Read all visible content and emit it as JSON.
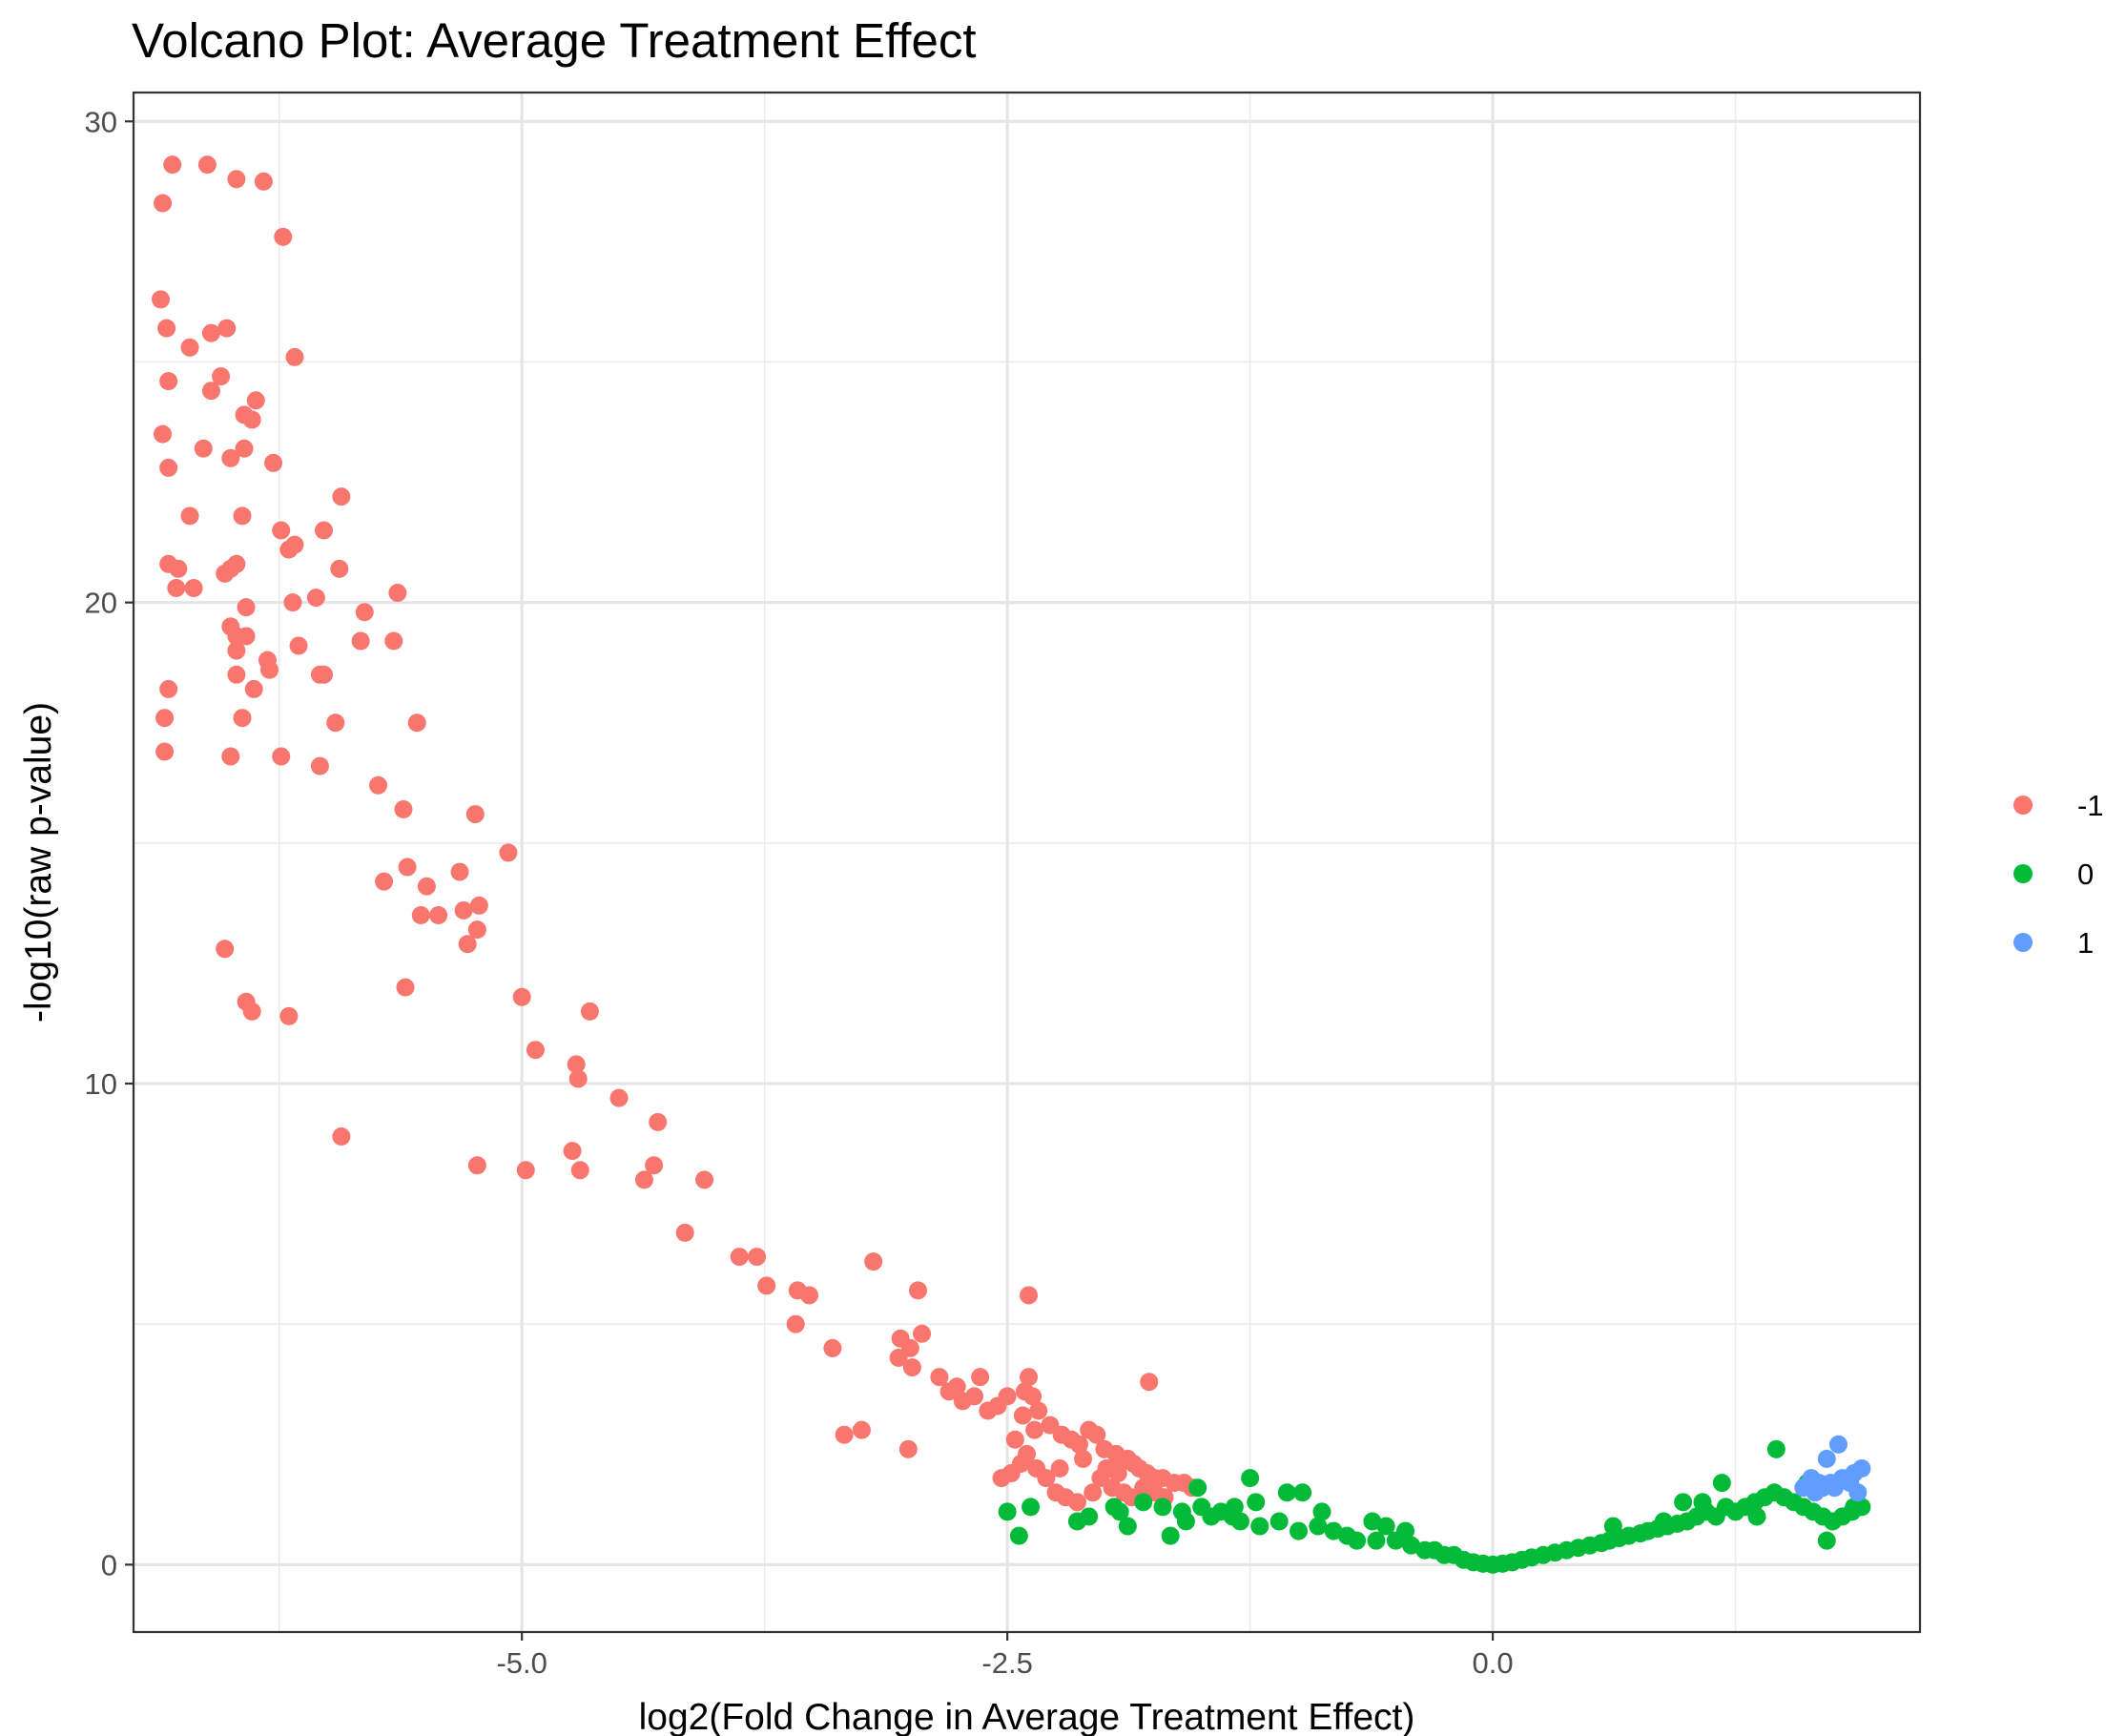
{
  "chart_data": {
    "type": "scatter",
    "title": "Volcano Plot: Average Treatment Effect",
    "xlabel": "log2(Fold Change in Average Treatment Effect)",
    "ylabel": "-log10(raw p-value)",
    "xlim": [
      -7.0,
      2.2
    ],
    "ylim": [
      -1.4,
      30.6
    ],
    "x_ticks": [
      {
        "value": -5.0,
        "label": "-5.0"
      },
      {
        "value": -2.5,
        "label": "-2.5"
      },
      {
        "value": 0.0,
        "label": "0.0"
      }
    ],
    "y_ticks": [
      {
        "value": 0,
        "label": "0"
      },
      {
        "value": 10,
        "label": "10"
      },
      {
        "value": 20,
        "label": "20"
      },
      {
        "value": 30,
        "label": "30"
      }
    ],
    "grid": true,
    "legend": {
      "placement": "right"
    },
    "series": [
      {
        "name": "-1",
        "color": "#F8766D",
        "points": [
          [
            -6.85,
            28.3
          ],
          [
            -6.8,
            29.1
          ],
          [
            -6.62,
            29.1
          ],
          [
            -6.47,
            28.8
          ],
          [
            -6.33,
            28.75
          ],
          [
            -6.23,
            27.6
          ],
          [
            -6.86,
            26.3
          ],
          [
            -6.83,
            25.7
          ],
          [
            -6.71,
            25.3
          ],
          [
            -6.6,
            25.6
          ],
          [
            -6.52,
            25.7
          ],
          [
            -6.17,
            25.1
          ],
          [
            -6.82,
            24.6
          ],
          [
            -6.6,
            24.4
          ],
          [
            -6.55,
            24.7
          ],
          [
            -6.43,
            23.9
          ],
          [
            -6.37,
            24.2
          ],
          [
            -6.39,
            23.8
          ],
          [
            -6.85,
            23.5
          ],
          [
            -6.82,
            22.8
          ],
          [
            -6.64,
            23.2
          ],
          [
            -6.5,
            23.0
          ],
          [
            -6.43,
            23.2
          ],
          [
            -6.28,
            22.9
          ],
          [
            -6.71,
            21.8
          ],
          [
            -6.44,
            21.8
          ],
          [
            -6.24,
            21.5
          ],
          [
            -6.2,
            21.1
          ],
          [
            -6.17,
            21.2
          ],
          [
            -6.02,
            21.5
          ],
          [
            -5.93,
            22.2
          ],
          [
            -6.82,
            20.8
          ],
          [
            -6.77,
            20.7
          ],
          [
            -6.47,
            20.8
          ],
          [
            -6.53,
            20.6
          ],
          [
            -6.5,
            20.7
          ],
          [
            -6.78,
            20.3
          ],
          [
            -6.69,
            20.3
          ],
          [
            -6.42,
            19.9
          ],
          [
            -6.18,
            20.0
          ],
          [
            -6.06,
            20.1
          ],
          [
            -5.94,
            20.7
          ],
          [
            -5.81,
            19.8
          ],
          [
            -5.64,
            20.2
          ],
          [
            -6.5,
            19.5
          ],
          [
            -6.47,
            19.3
          ],
          [
            -6.42,
            19.3
          ],
          [
            -6.47,
            19.0
          ],
          [
            -6.15,
            19.1
          ],
          [
            -5.83,
            19.2
          ],
          [
            -5.66,
            19.2
          ],
          [
            -6.82,
            18.2
          ],
          [
            -6.47,
            18.5
          ],
          [
            -6.38,
            18.2
          ],
          [
            -6.31,
            18.8
          ],
          [
            -6.3,
            18.6
          ],
          [
            -6.04,
            18.5
          ],
          [
            -6.02,
            18.5
          ],
          [
            -6.84,
            17.6
          ],
          [
            -6.84,
            16.9
          ],
          [
            -6.44,
            17.6
          ],
          [
            -6.5,
            16.8
          ],
          [
            -6.24,
            16.8
          ],
          [
            -6.04,
            16.6
          ],
          [
            -5.96,
            17.5
          ],
          [
            -5.54,
            17.5
          ],
          [
            -5.74,
            16.2
          ],
          [
            -5.61,
            15.7
          ],
          [
            -5.24,
            15.6
          ],
          [
            -5.07,
            14.8
          ],
          [
            -5.71,
            14.2
          ],
          [
            -5.59,
            14.5
          ],
          [
            -5.49,
            14.1
          ],
          [
            -5.32,
            14.4
          ],
          [
            -5.52,
            13.5
          ],
          [
            -5.43,
            13.5
          ],
          [
            -5.3,
            13.6
          ],
          [
            -5.22,
            13.7
          ],
          [
            -5.28,
            12.9
          ],
          [
            -5.23,
            13.2
          ],
          [
            -5.6,
            12.0
          ],
          [
            -5.0,
            11.8
          ],
          [
            -6.42,
            11.7
          ],
          [
            -6.39,
            11.5
          ],
          [
            -6.2,
            11.4
          ],
          [
            -6.53,
            12.8
          ],
          [
            -4.65,
            11.5
          ],
          [
            -4.93,
            10.7
          ],
          [
            -4.72,
            10.4
          ],
          [
            -4.71,
            10.1
          ],
          [
            -4.5,
            9.7
          ],
          [
            -4.3,
            9.2
          ],
          [
            -4.74,
            8.6
          ],
          [
            -4.7,
            8.2
          ],
          [
            -4.37,
            8.0
          ],
          [
            -4.32,
            8.3
          ],
          [
            -4.06,
            8.0
          ],
          [
            -5.23,
            8.3
          ],
          [
            -4.98,
            8.2
          ],
          [
            -5.93,
            8.9
          ],
          [
            -4.16,
            6.9
          ],
          [
            -3.88,
            6.4
          ],
          [
            -3.79,
            6.4
          ],
          [
            -3.74,
            5.8
          ],
          [
            -3.58,
            5.7
          ],
          [
            -3.52,
            5.6
          ],
          [
            -3.59,
            5.0
          ],
          [
            -3.4,
            4.5
          ],
          [
            -3.19,
            6.3
          ],
          [
            -3.05,
            4.7
          ],
          [
            -3.06,
            4.3
          ],
          [
            -3.0,
            4.5
          ],
          [
            -2.99,
            4.1
          ],
          [
            -2.96,
            5.7
          ],
          [
            -2.94,
            4.8
          ],
          [
            -2.85,
            3.9
          ],
          [
            -2.8,
            3.6
          ],
          [
            -2.76,
            3.7
          ],
          [
            -2.73,
            3.4
          ],
          [
            -2.67,
            3.5
          ],
          [
            -2.6,
            3.2
          ],
          [
            -2.64,
            3.9
          ],
          [
            -2.5,
            3.5
          ],
          [
            -2.42,
            3.1
          ],
          [
            -2.41,
            3.6
          ],
          [
            -2.39,
            3.9
          ],
          [
            -2.37,
            3.5
          ],
          [
            -2.34,
            3.2
          ],
          [
            -2.36,
            2.8
          ],
          [
            -2.28,
            2.9
          ],
          [
            -2.22,
            2.7
          ],
          [
            -2.17,
            2.6
          ],
          [
            -2.13,
            2.5
          ],
          [
            -2.08,
            2.8
          ],
          [
            -2.04,
            2.7
          ],
          [
            -2.0,
            2.4
          ],
          [
            -1.94,
            2.3
          ],
          [
            -1.92,
            2.1
          ],
          [
            -1.88,
            2.2
          ],
          [
            -1.85,
            2.1
          ],
          [
            -1.82,
            2.0
          ],
          [
            -1.78,
            1.9
          ],
          [
            -1.74,
            1.8
          ],
          [
            -1.7,
            1.8
          ],
          [
            -1.64,
            1.7
          ],
          [
            -1.59,
            1.7
          ],
          [
            -1.55,
            1.6
          ],
          [
            -2.46,
            2.6
          ],
          [
            -2.4,
            2.3
          ],
          [
            -2.35,
            2.0
          ],
          [
            -2.3,
            1.8
          ],
          [
            -2.25,
            1.5
          ],
          [
            -2.2,
            1.4
          ],
          [
            -2.14,
            1.3
          ],
          [
            -2.06,
            1.5
          ],
          [
            -2.02,
            1.8
          ],
          [
            -1.96,
            1.6
          ],
          [
            -1.9,
            1.5
          ],
          [
            -1.86,
            1.4
          ],
          [
            -1.8,
            1.6
          ],
          [
            -1.74,
            1.5
          ],
          [
            -1.69,
            1.4
          ],
          [
            -2.53,
            1.8
          ],
          [
            -2.48,
            1.9
          ],
          [
            -2.43,
            2.1
          ],
          [
            -2.23,
            2.0
          ],
          [
            -2.11,
            2.2
          ],
          [
            -1.99,
            2.0
          ],
          [
            -1.93,
            1.9
          ],
          [
            -1.77,
            3.8
          ],
          [
            -2.39,
            5.6
          ],
          [
            -3.25,
            2.8
          ],
          [
            -3.34,
            2.7
          ],
          [
            -3.01,
            2.4
          ],
          [
            -2.55,
            3.3
          ]
        ]
      },
      {
        "name": "0",
        "color": "#00BA38",
        "points": [
          [
            -2.5,
            1.1
          ],
          [
            -2.44,
            0.6
          ],
          [
            -2.38,
            1.2
          ],
          [
            -2.14,
            0.9
          ],
          [
            -2.08,
            1.0
          ],
          [
            -1.92,
            1.1
          ],
          [
            -1.95,
            1.2
          ],
          [
            -1.8,
            1.3
          ],
          [
            -1.7,
            1.2
          ],
          [
            -1.6,
            1.1
          ],
          [
            -1.66,
            0.6
          ],
          [
            -1.5,
            1.2
          ],
          [
            -1.45,
            1.0
          ],
          [
            -1.52,
            1.6
          ],
          [
            -1.4,
            1.1
          ],
          [
            -1.33,
            1.2
          ],
          [
            -1.3,
            0.9
          ],
          [
            -1.25,
            1.8
          ],
          [
            -1.2,
            0.8
          ],
          [
            -1.1,
            0.9
          ],
          [
            -1.06,
            1.5
          ],
          [
            -0.98,
            1.5
          ],
          [
            -1.0,
            0.7
          ],
          [
            -0.9,
            0.8
          ],
          [
            -0.82,
            0.7
          ],
          [
            -0.75,
            0.6
          ],
          [
            -0.7,
            0.5
          ],
          [
            -0.6,
            0.5
          ],
          [
            -0.55,
            0.8
          ],
          [
            -0.5,
            0.5
          ],
          [
            -0.42,
            0.4
          ],
          [
            -0.35,
            0.3
          ],
          [
            -0.3,
            0.3
          ],
          [
            -0.25,
            0.2
          ],
          [
            -0.2,
            0.2
          ],
          [
            -0.15,
            0.1
          ],
          [
            -0.1,
            0.05
          ],
          [
            -0.05,
            0.02
          ],
          [
            0.0,
            0.0
          ],
          [
            0.05,
            0.02
          ],
          [
            0.1,
            0.05
          ],
          [
            0.15,
            0.1
          ],
          [
            0.2,
            0.15
          ],
          [
            0.26,
            0.2
          ],
          [
            0.32,
            0.25
          ],
          [
            0.38,
            0.3
          ],
          [
            0.44,
            0.35
          ],
          [
            0.5,
            0.4
          ],
          [
            0.56,
            0.45
          ],
          [
            0.6,
            0.5
          ],
          [
            0.65,
            0.55
          ],
          [
            0.7,
            0.6
          ],
          [
            0.76,
            0.65
          ],
          [
            0.8,
            0.7
          ],
          [
            0.85,
            0.75
          ],
          [
            0.9,
            0.8
          ],
          [
            0.95,
            0.85
          ],
          [
            1.0,
            0.9
          ],
          [
            1.05,
            1.0
          ],
          [
            1.1,
            1.1
          ],
          [
            1.15,
            1.0
          ],
          [
            1.2,
            1.2
          ],
          [
            1.25,
            1.1
          ],
          [
            1.3,
            1.2
          ],
          [
            1.35,
            1.3
          ],
          [
            1.4,
            1.4
          ],
          [
            1.45,
            1.5
          ],
          [
            1.5,
            1.4
          ],
          [
            1.55,
            1.3
          ],
          [
            1.6,
            1.2
          ],
          [
            1.65,
            1.1
          ],
          [
            1.7,
            1.0
          ],
          [
            1.75,
            0.9
          ],
          [
            1.8,
            1.0
          ],
          [
            1.85,
            1.1
          ],
          [
            1.9,
            1.2
          ],
          [
            0.98,
            1.3
          ],
          [
            1.18,
            1.7
          ],
          [
            1.46,
            2.4
          ],
          [
            1.62,
            1.7
          ],
          [
            1.72,
            0.5
          ],
          [
            1.86,
            1.2
          ],
          [
            -1.88,
            0.8
          ],
          [
            -1.58,
            0.9
          ],
          [
            -1.34,
            1.0
          ],
          [
            -1.22,
            1.3
          ],
          [
            -0.88,
            1.1
          ],
          [
            -0.62,
            0.9
          ],
          [
            -0.45,
            0.7
          ],
          [
            0.62,
            0.8
          ],
          [
            0.88,
            0.9
          ],
          [
            1.08,
            1.3
          ],
          [
            1.36,
            1.0
          ]
        ]
      },
      {
        "name": "1",
        "color": "#619CFF",
        "points": [
          [
            1.6,
            1.6
          ],
          [
            1.66,
            1.5
          ],
          [
            1.7,
            1.6
          ],
          [
            1.74,
            1.7
          ],
          [
            1.76,
            1.6
          ],
          [
            1.8,
            1.8
          ],
          [
            1.84,
            1.7
          ],
          [
            1.86,
            1.9
          ],
          [
            1.88,
            1.5
          ],
          [
            1.72,
            2.2
          ],
          [
            1.78,
            2.5
          ],
          [
            1.64,
            1.8
          ],
          [
            1.9,
            2.0
          ],
          [
            1.68,
            1.7
          ]
        ]
      }
    ]
  }
}
